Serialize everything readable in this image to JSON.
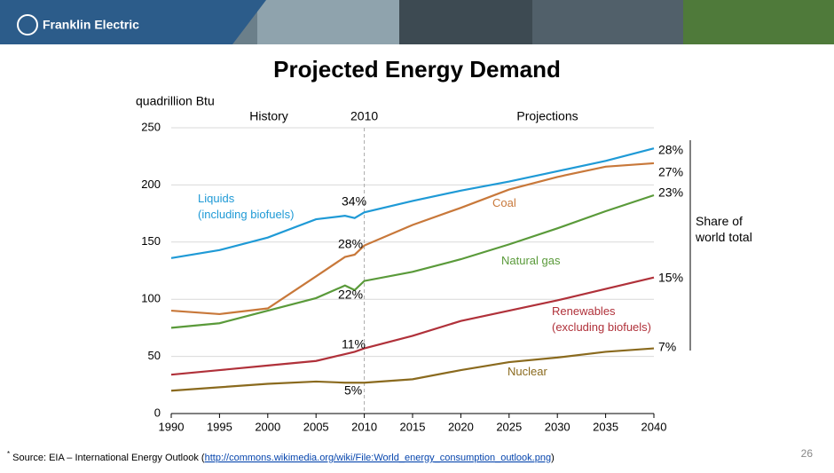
{
  "header": {
    "logo": "Franklin Electric"
  },
  "chart_data": {
    "type": "line",
    "title": "Projected Energy Demand",
    "y_label": "quadrillion Btu",
    "period_labels": [
      "History",
      "Projections"
    ],
    "divider": 2010,
    "share_label": "Share of world total",
    "x": [
      1990,
      1995,
      2000,
      2005,
      2008,
      2009,
      2010,
      2015,
      2020,
      2025,
      2030,
      2035,
      2040
    ],
    "series": [
      {
        "name": "Liquids (including biofuels)",
        "color": "#1f9ad6",
        "values": [
          136,
          143,
          154,
          170,
          173,
          171,
          176,
          186,
          195,
          203,
          212,
          221,
          232
        ],
        "share_2010": "34%",
        "share_2040": "28%"
      },
      {
        "name": "Coal",
        "color": "#c8783a",
        "values": [
          90,
          87,
          92,
          120,
          137,
          139,
          147,
          165,
          180,
          196,
          207,
          216,
          219
        ],
        "share_2010": "28%",
        "share_2040": "27%"
      },
      {
        "name": "Natural gas",
        "color": "#5a9a3a",
        "values": [
          75,
          79,
          90,
          101,
          112,
          108,
          116,
          124,
          135,
          148,
          162,
          177,
          191
        ],
        "share_2010": "22%",
        "share_2040": "23%"
      },
      {
        "name": "Renewables (excluding biofuels)",
        "color": "#b0313a",
        "values": [
          34,
          38,
          42,
          46,
          52,
          54,
          57,
          68,
          81,
          90,
          99,
          109,
          119
        ],
        "share_2010": "11%",
        "share_2040": "15%"
      },
      {
        "name": "Nuclear",
        "color": "#8a6a1e",
        "values": [
          20,
          23,
          26,
          28,
          27,
          27,
          27,
          30,
          38,
          45,
          49,
          54,
          57
        ],
        "share_2010": "5%",
        "share_2040": "7%"
      }
    ],
    "xlim": [
      1990,
      2040
    ],
    "xticks": [
      1990,
      1995,
      2000,
      2005,
      2010,
      2015,
      2020,
      2025,
      2030,
      2035,
      2040
    ],
    "ylim": [
      0,
      250
    ],
    "yticks": [
      0,
      50,
      100,
      150,
      200,
      250
    ],
    "grid": true
  },
  "footer": {
    "marker": "*",
    "source_prefix": "Source: EIA – International Energy Outlook (",
    "source_link": "http://commons.wikimedia.org/wiki/File:World_energy_consumption_outlook.png",
    "source_suffix": ")",
    "page_number": "26"
  }
}
